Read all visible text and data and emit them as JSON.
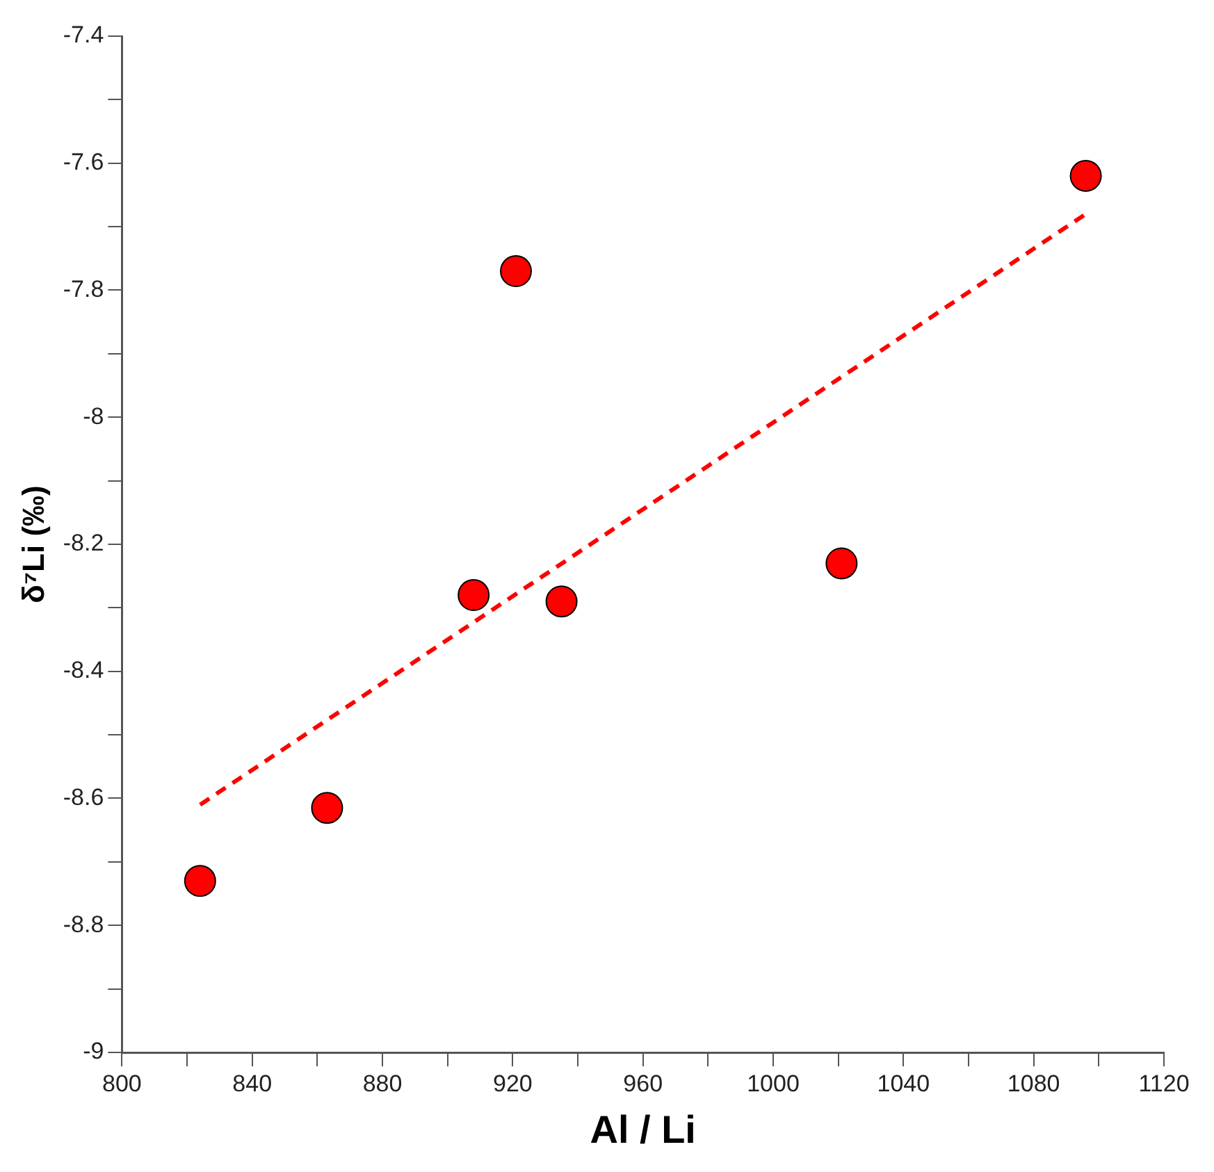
{
  "chart_data": {
    "type": "scatter",
    "xlabel": "Al / Li",
    "ylabel": "δ⁷Li (‰)",
    "xlim": [
      800,
      1120
    ],
    "ylim": [
      -9,
      -7.4
    ],
    "xticks": [
      800,
      {
        "value": 820,
        "label": null
      },
      840,
      {
        "value": 860,
        "label": null
      },
      880,
      {
        "value": 900,
        "label": null
      },
      920,
      {
        "value": 940,
        "label": null
      },
      960,
      {
        "value": 980,
        "label": null
      },
      1000,
      {
        "value": 1020,
        "label": null
      },
      1040,
      {
        "value": 1060,
        "label": null
      },
      1080,
      {
        "value": 1100,
        "label": null
      },
      1120
    ],
    "yticks": [
      -9,
      {
        "value": -8.9,
        "label": null
      },
      -8.8,
      {
        "value": -8.7,
        "label": null
      },
      -8.6,
      {
        "value": -8.5,
        "label": null
      },
      -8.4,
      {
        "value": -8.3,
        "label": null
      },
      -8.2,
      {
        "value": -8.1,
        "label": null
      },
      -8,
      {
        "value": -7.9,
        "label": null
      },
      -7.8,
      {
        "value": -7.7,
        "label": null
      },
      -7.6,
      {
        "value": -7.5,
        "label": null
      },
      -7.4
    ],
    "grid": false,
    "legend": false,
    "series": [
      {
        "type": "scatter",
        "color": "#ff0000",
        "marker": "circle",
        "x": [
          824,
          863,
          908,
          921,
          935,
          1021,
          1096
        ],
        "values": [
          -8.73,
          -8.615,
          -8.28,
          -7.77,
          -8.29,
          -8.23,
          -7.62
        ]
      },
      {
        "type": "line",
        "color": "#ff0000",
        "marker": "none",
        "line_style": "dashed",
        "x": [
          824,
          1096
        ],
        "values": [
          -8.61,
          -7.68
        ]
      }
    ]
  }
}
